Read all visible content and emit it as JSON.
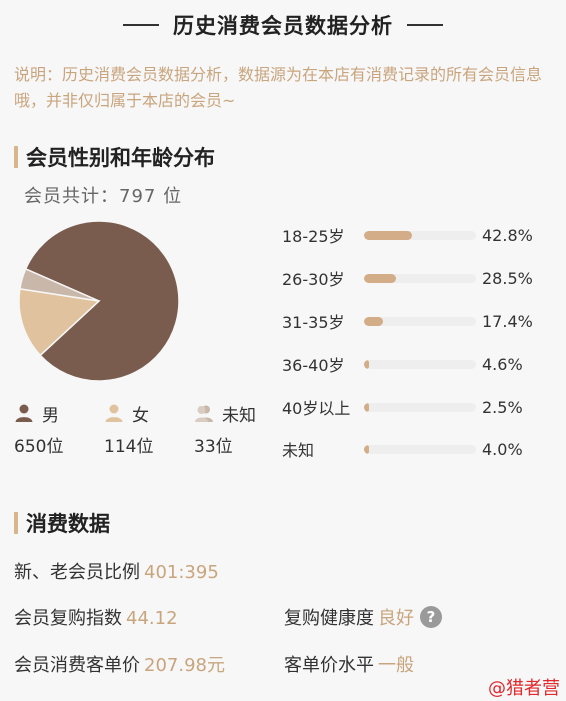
{
  "header": {
    "title": "历史消费会员数据分析"
  },
  "notice": "说明：历史消费会员数据分析，数据源为在本店有消费记录的所有会员信息哦，并非仅归属于本店的会员~",
  "members": {
    "section_title": "会员性别和年龄分布",
    "total_label": "会员共计：",
    "total_value": "797",
    "total_unit": "位",
    "gender": [
      {
        "label": "男",
        "count": "650位",
        "value": 650,
        "color": "#7a5c4f",
        "icon": "male-user-icon"
      },
      {
        "label": "女",
        "count": "114位",
        "value": 114,
        "color": "#e0c39e",
        "icon": "female-user-icon"
      },
      {
        "label": "未知",
        "count": "33位",
        "value": 33,
        "color": "#c9b8aa",
        "icon": "unknown-user-icon"
      }
    ],
    "age_groups": [
      {
        "label": "18-25岁",
        "percent": "42.8%",
        "fraction": 0.428
      },
      {
        "label": "26-30岁",
        "percent": "28.5%",
        "fraction": 0.285
      },
      {
        "label": "31-35岁",
        "percent": "17.4%",
        "fraction": 0.174
      },
      {
        "label": "36-40岁",
        "percent": "4.6%",
        "fraction": 0.046
      },
      {
        "label": "40岁以上",
        "percent": "2.5%",
        "fraction": 0.025
      },
      {
        "label": "未知",
        "percent": "4.0%",
        "fraction": 0.04
      }
    ]
  },
  "consumption": {
    "section_title": "消费数据",
    "new_old_ratio": {
      "label": "新、老会员比例",
      "value": "401:395"
    },
    "repurchase_index": {
      "label": "会员复购指数",
      "value": "44.12"
    },
    "repurchase_health": {
      "label": "复购健康度",
      "value": "良好",
      "help_icon": "question-icon"
    },
    "avg_order_value": {
      "label": "会员消费客单价",
      "value": "207.98元"
    },
    "order_value_level": {
      "label": "客单价水平",
      "value": "一般"
    }
  },
  "watermark": "@猎者营",
  "colors": {
    "accent": "#c9a57e",
    "bar_fill": "#d2ad88",
    "track": "#eeeeee"
  }
}
